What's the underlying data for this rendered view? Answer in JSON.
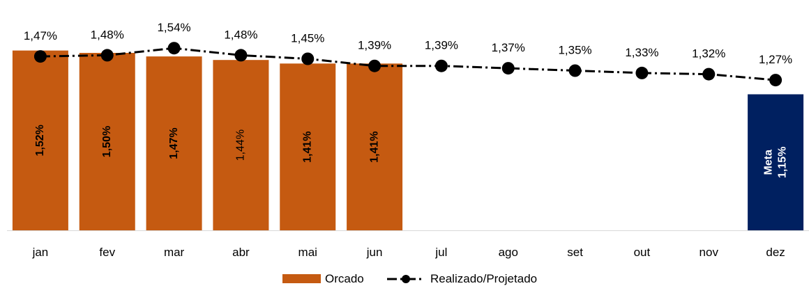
{
  "chart_data": {
    "type": "bar",
    "categories": [
      "jan",
      "fev",
      "mar",
      "abr",
      "mai",
      "jun",
      "jul",
      "ago",
      "set",
      "out",
      "nov",
      "dez"
    ],
    "series": [
      {
        "name": "Orcado",
        "kind": "bar",
        "color": "#C55A11",
        "values": [
          1.52,
          1.5,
          1.47,
          1.44,
          1.41,
          1.41,
          null,
          null,
          null,
          null,
          null,
          null
        ],
        "labels": [
          "1,52%",
          "1,50%",
          "1,47%",
          "1,44%",
          "1,41%",
          "1,41%",
          "",
          "",
          "",
          "",
          "",
          ""
        ],
        "label_bold": [
          true,
          true,
          true,
          false,
          true,
          true,
          false,
          false,
          false,
          false,
          false,
          false
        ]
      },
      {
        "name": "Realizado/Projetado",
        "kind": "line",
        "color": "#000000",
        "line_style": "dash-dot",
        "values": [
          1.47,
          1.48,
          1.54,
          1.48,
          1.45,
          1.39,
          1.39,
          1.37,
          1.35,
          1.33,
          1.32,
          1.27
        ],
        "labels": [
          "1,47%",
          "1,48%",
          "1,54%",
          "1,48%",
          "1,45%",
          "1,39%",
          "1,39%",
          "1,37%",
          "1,35%",
          "1,33%",
          "1,32%",
          "1,27%"
        ]
      }
    ],
    "meta": {
      "category": "dez",
      "value": 1.15,
      "line1": "Meta",
      "line2": "1,15%",
      "color": "#002060"
    },
    "ylim": [
      0,
      1.7
    ],
    "grid": false,
    "legend_position": "bottom"
  }
}
